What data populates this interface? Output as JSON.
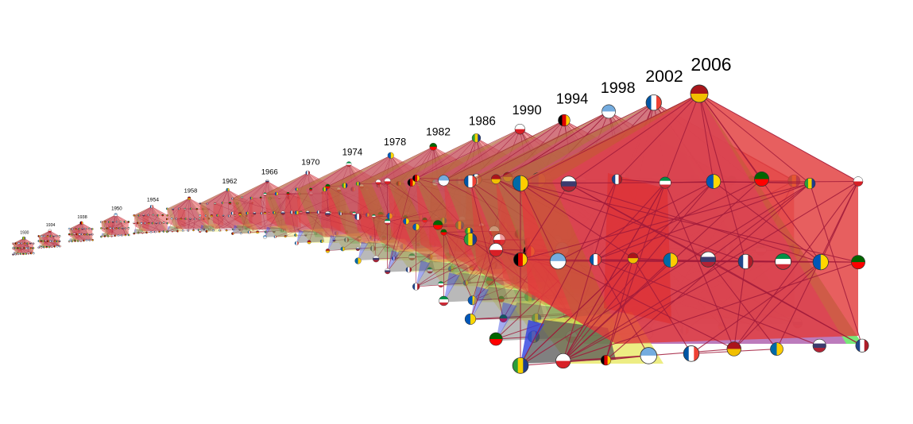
{
  "visualization": {
    "years": [
      {
        "label": "1930"
      },
      {
        "label": "1934"
      },
      {
        "label": "1938"
      },
      {
        "label": "1950"
      },
      {
        "label": "1954"
      },
      {
        "label": "1958"
      },
      {
        "label": "1962"
      },
      {
        "label": "1966"
      },
      {
        "label": "1970"
      },
      {
        "label": "1974"
      },
      {
        "label": "1978"
      },
      {
        "label": "1982"
      },
      {
        "label": "1986"
      },
      {
        "label": "1990"
      },
      {
        "label": "1994"
      },
      {
        "label": "1998"
      },
      {
        "label": "2002"
      },
      {
        "label": "2006"
      }
    ],
    "colors": {
      "red_plane": "#e23c3c",
      "magenta_plane": "#e040e0",
      "green_plane": "#3ee03e",
      "yellow_plane": "#e6e64e",
      "gray_plane": "#555555",
      "blue_plane": "#3040e0",
      "edge": "#a01a3a"
    }
  }
}
